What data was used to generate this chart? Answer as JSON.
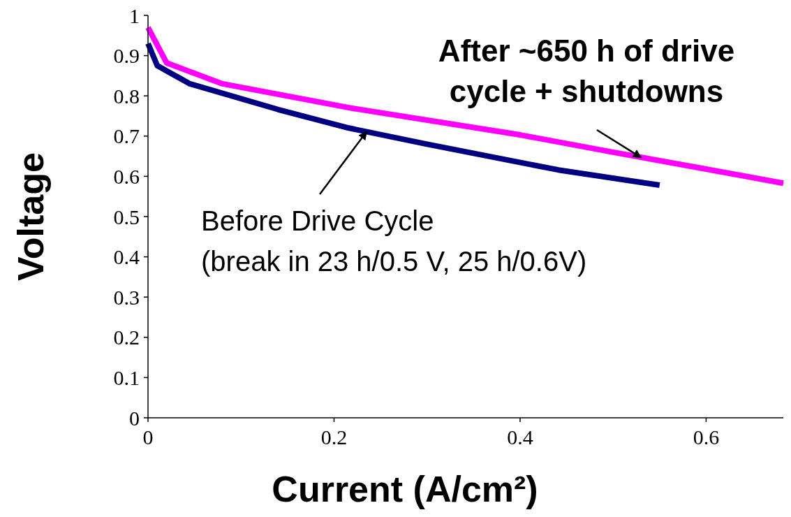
{
  "chart_data": {
    "type": "line",
    "xlabel": "Current (A/cm²)",
    "ylabel": "Voltage",
    "xlim": [
      0,
      0.683
    ],
    "ylim": [
      0,
      1
    ],
    "xticks": [
      0,
      0.2,
      0.4,
      0.6
    ],
    "yticks": [
      0,
      0.1,
      0.2,
      0.3,
      0.4,
      0.5,
      0.6,
      0.7,
      0.8,
      0.9,
      1
    ],
    "grid": false,
    "marker": "none",
    "line_style": "solid",
    "series": [
      {
        "color": "#000080",
        "x": [
          0,
          0.01,
          0.045,
          0.14,
          0.216,
          0.3,
          0.441,
          0.55
        ],
        "values": [
          0.93,
          0.875,
          0.83,
          0.766,
          0.72,
          0.68,
          0.616,
          0.578
        ]
      },
      {
        "color": "#ff00ff",
        "x": [
          0,
          0.02,
          0.08,
          0.22,
          0.4,
          0.5,
          0.6,
          0.683
        ],
        "values": [
          0.97,
          0.882,
          0.83,
          0.769,
          0.703,
          0.66,
          0.618,
          0.583
        ]
      }
    ],
    "annotations": [
      {
        "text": "After ~650 h of drive\ncycle + shutdowns",
        "x": 0.53,
        "y": 0.647
      },
      {
        "text": "Before Drive Cycle\n(break in 23 h/0.5 V, 25 h/0.6V)",
        "x": 0.235,
        "y": 0.711
      }
    ]
  }
}
